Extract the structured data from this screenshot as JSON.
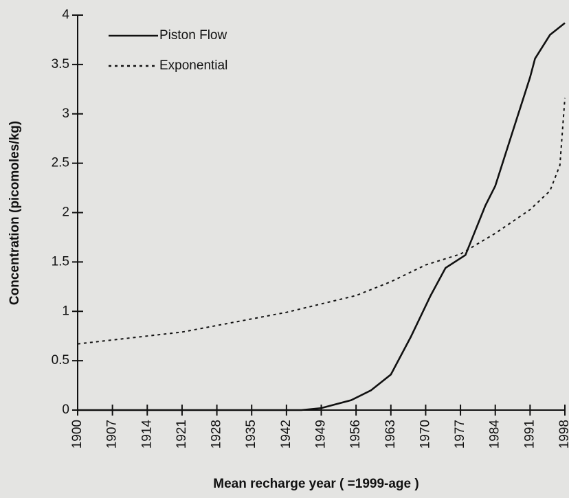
{
  "chart_data": {
    "type": "line",
    "xlabel": "Mean recharge year ( =1999-age )",
    "ylabel": "Concentration (picomoles/kg)",
    "xlim": [
      1900,
      1998
    ],
    "xticks": [
      1900,
      1907,
      1914,
      1921,
      1928,
      1935,
      1942,
      1949,
      1956,
      1963,
      1970,
      1977,
      1984,
      1991,
      1998
    ],
    "ylim": [
      0,
      4
    ],
    "yticks": [
      0,
      0.5,
      1,
      1.5,
      2,
      2.5,
      3,
      3.5,
      4
    ],
    "legend": "upper left",
    "series": [
      {
        "name": "Piston Flow",
        "color": "#111111",
        "linestyle": "solid",
        "x": [
          1900,
          1930,
          1945,
          1949,
          1955,
          1959,
          1963,
          1967,
          1971,
          1974,
          1978,
          1982,
          1984,
          1988,
          1991,
          1992,
          1995,
          1998
        ],
        "values": [
          0,
          0,
          0,
          0.02,
          0.1,
          0.2,
          0.36,
          0.74,
          1.16,
          1.44,
          1.57,
          2.07,
          2.27,
          2.9,
          3.37,
          3.56,
          3.8,
          3.92
        ]
      },
      {
        "name": "Exponential",
        "color": "#111111",
        "linestyle": "dotted",
        "x": [
          1900,
          1921,
          1942,
          1956,
          1963,
          1970,
          1977,
          1984,
          1991,
          1995,
          1997,
          1998
        ],
        "values": [
          0.67,
          0.79,
          0.99,
          1.16,
          1.3,
          1.47,
          1.58,
          1.79,
          2.03,
          2.22,
          2.48,
          3.16
        ]
      }
    ]
  }
}
